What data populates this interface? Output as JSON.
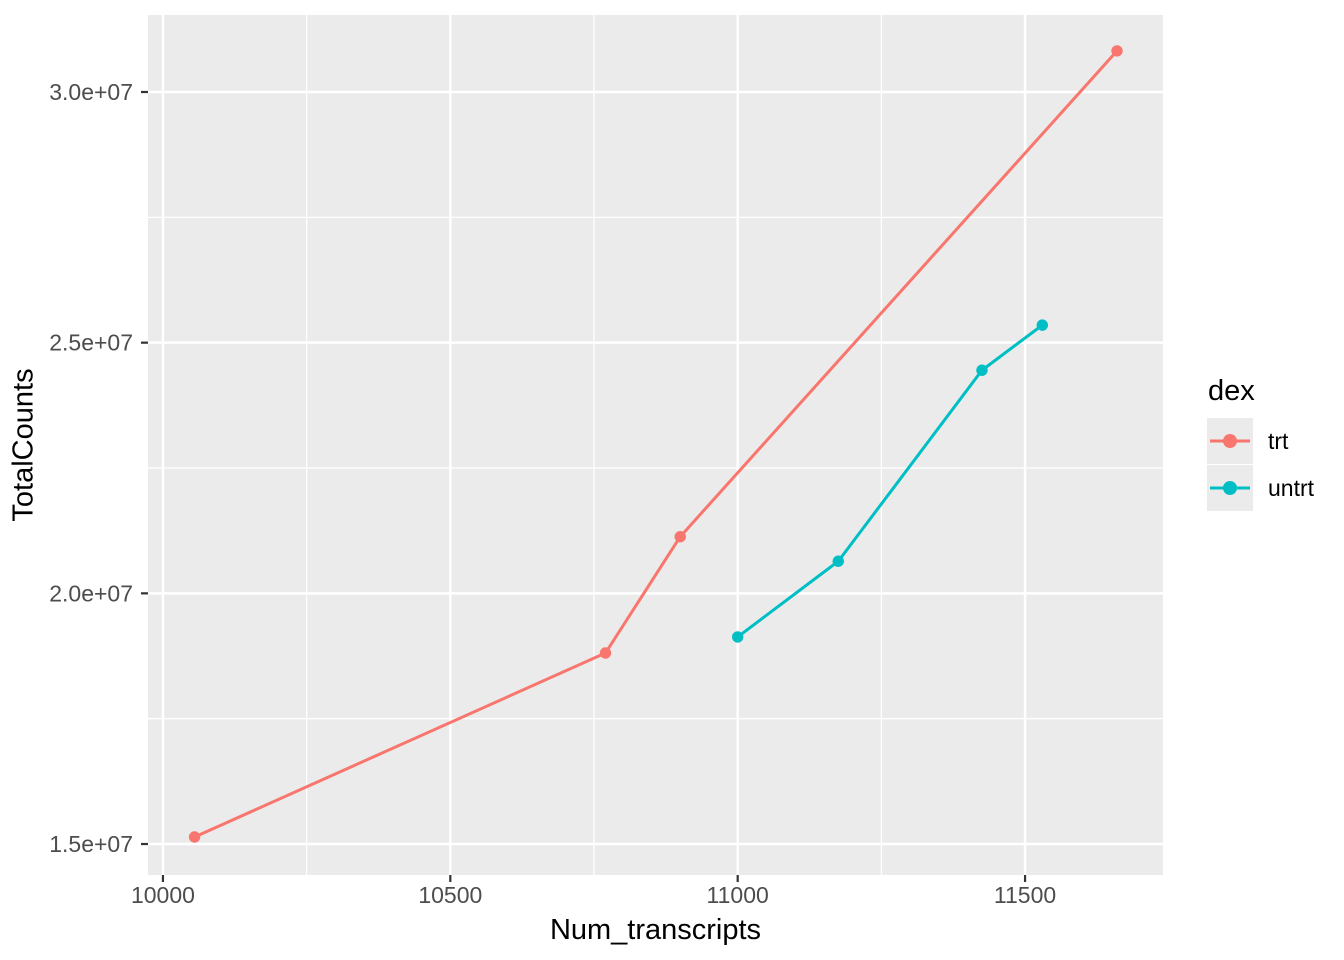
{
  "chart_data": {
    "type": "line",
    "title": "",
    "xlabel": "Num_transcripts",
    "ylabel": "TotalCounts",
    "legend": {
      "title": "dex",
      "position": "right"
    },
    "grid": true,
    "panel_bg": "#EBEBEB",
    "grid_color": "#FFFFFF",
    "tick_mark_color": "#333333",
    "axis_text_color": "#4D4D4D",
    "axis_title_color": "#000000",
    "xlim": [
      9974,
      11740
    ],
    "ylim": [
      14382000,
      31536000
    ],
    "xticks": {
      "values": [
        10000,
        10500,
        11000,
        11500
      ],
      "labels": [
        "10000",
        "10500",
        "11000",
        "11500"
      ],
      "minor": [
        10250,
        10750,
        11250
      ]
    },
    "yticks": {
      "values": [
        15000000,
        20000000,
        25000000,
        30000000
      ],
      "labels": [
        "1.5e+07",
        "2.0e+07",
        "2.5e+07",
        "3.0e+07"
      ],
      "minor": [
        17500000,
        22500000,
        27500000
      ]
    },
    "series": [
      {
        "name": "trt",
        "color": "#F8766D",
        "points": [
          [
            10055,
            15140000
          ],
          [
            10770,
            18810000
          ],
          [
            10900,
            21130000
          ],
          [
            11660,
            30820000
          ]
        ]
      },
      {
        "name": "untrt",
        "color": "#00BFC4",
        "points": [
          [
            11000,
            19130000
          ],
          [
            11175,
            20640000
          ],
          [
            11425,
            24450000
          ],
          [
            11530,
            25350000
          ]
        ]
      }
    ]
  }
}
